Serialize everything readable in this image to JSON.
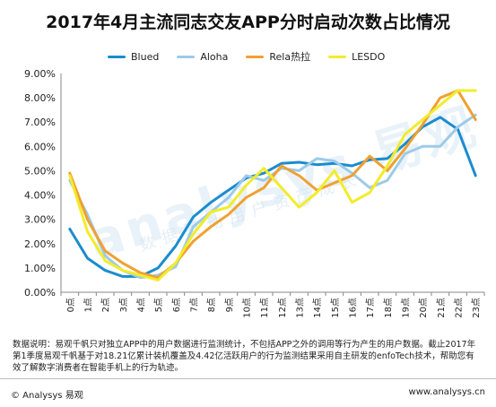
{
  "title": "2017年4月主流同志交友APP分时启动次数占比情况",
  "note": "数据说明：易观千帆只对独立APP中的用户数据进行监测统计，不包括APP之外的调用等行为产生的用户数据。截止2017年第1季度易观千帆基于对18.21亿累计装机覆盖及4.42亿活跃用户的行为监测结果采用自主研发的enfoTech技术，帮助您有效了解数字消费者在智能手机上的行为轨迹。",
  "footer_left": "© Analysys 易观",
  "footer_right": "www.analysys.cn",
  "watermark": "analysys 易观",
  "watermark_sub": "数据驱动用户资产成长",
  "chart_data": {
    "type": "line",
    "ylim": [
      0,
      9
    ],
    "y_ticks": [
      "0.00%",
      "1.00%",
      "2.00%",
      "3.00%",
      "4.00%",
      "5.00%",
      "6.00%",
      "7.00%",
      "8.00%",
      "9.00%"
    ],
    "categories": [
      "0点",
      "1点",
      "2点",
      "3点",
      "4点",
      "5点",
      "6点",
      "7点",
      "8点",
      "9点",
      "10点",
      "11点",
      "12点",
      "13点",
      "14点",
      "15点",
      "16点",
      "17点",
      "18点",
      "19点",
      "20点",
      "21点",
      "22点",
      "23点"
    ],
    "series": [
      {
        "name": "Blued",
        "color": "#1a8ccf",
        "values": [
          2.6,
          1.4,
          0.9,
          0.65,
          0.65,
          1.0,
          1.9,
          3.1,
          3.7,
          4.2,
          4.7,
          4.9,
          5.3,
          5.35,
          5.25,
          5.3,
          5.2,
          5.45,
          5.5,
          6.1,
          6.8,
          7.2,
          6.7,
          4.8
        ]
      },
      {
        "name": "Aloha",
        "color": "#9ccbe8",
        "values": [
          4.6,
          3.2,
          1.5,
          0.9,
          0.6,
          0.7,
          1.05,
          2.7,
          3.3,
          3.9,
          4.8,
          4.6,
          5.1,
          5.0,
          5.5,
          5.4,
          4.9,
          4.3,
          4.6,
          5.7,
          6.0,
          6.0,
          6.8,
          7.3
        ]
      },
      {
        "name": "Rela热拉",
        "color": "#f0a030",
        "values": [
          4.9,
          3.0,
          1.7,
          1.2,
          0.8,
          0.6,
          1.2,
          2.1,
          2.7,
          3.2,
          3.9,
          4.3,
          5.2,
          4.8,
          4.2,
          4.5,
          4.8,
          5.6,
          5.0,
          5.9,
          6.9,
          8.0,
          8.3,
          7.1
        ]
      },
      {
        "name": "LESDO",
        "color": "#f2ec2a",
        "values": [
          4.8,
          2.5,
          1.3,
          0.9,
          0.7,
          0.5,
          1.2,
          2.4,
          3.3,
          3.5,
          4.4,
          5.1,
          4.3,
          3.5,
          4.1,
          5.0,
          3.7,
          4.1,
          5.2,
          6.5,
          7.1,
          7.7,
          8.3,
          8.3
        ]
      }
    ]
  }
}
